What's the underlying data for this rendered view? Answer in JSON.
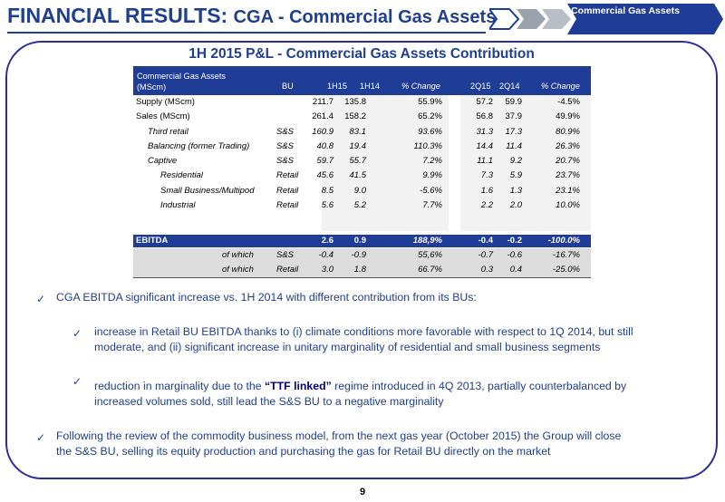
{
  "header": {
    "title_main": "FINANCIAL RESULTS:",
    "title_sub": "CGA - Commercial Gas Assets",
    "nav_chevron_label": "Commercial Gas Assets"
  },
  "section_title": "1H 2015 P&L - Commercial Gas Assets Contribution",
  "table": {
    "header_left_line1": "Commercial Gas Assets",
    "header_left_line2": "(MScm)",
    "columns": [
      "BU",
      "1H15",
      "1H14",
      "% Change",
      "2Q15",
      "2Q14",
      "% Change"
    ],
    "rows": [
      {
        "label": "Supply (MScm)",
        "bu": "",
        "c1": "211.7",
        "c2": "135.8",
        "c3": "55.9%",
        "c4": "57.2",
        "c5": "59.9",
        "c6": "-4.5%"
      },
      {
        "label": "Sales (MScm)",
        "bu": "",
        "c1": "261.4",
        "c2": "158.2",
        "c3": "65.2%",
        "c4": "56.8",
        "c5": "37.9",
        "c6": "49.9%"
      },
      {
        "label": "Third retail",
        "bu": "S&S",
        "c1": "160.9",
        "c2": "83.1",
        "c3": "93.6%",
        "c4": "31.3",
        "c5": "17.3",
        "c6": "80.9%"
      },
      {
        "label": "Balancing (former Trading)",
        "bu": "S&S",
        "c1": "40.8",
        "c2": "19.4",
        "c3": "110.3%",
        "c4": "14.4",
        "c5": "11.4",
        "c6": "26.3%"
      },
      {
        "label": "Captive",
        "bu": "S&S",
        "c1": "59.7",
        "c2": "55.7",
        "c3": "7.2%",
        "c4": "11.1",
        "c5": "9.2",
        "c6": "20.7%"
      },
      {
        "label": "Residential",
        "bu": "Retail",
        "c1": "45.6",
        "c2": "41.5",
        "c3": "9.9%",
        "c4": "7.3",
        "c5": "5.9",
        "c6": "23.7%"
      },
      {
        "label": "Small Business/Multipod",
        "bu": "Retail",
        "c1": "8.5",
        "c2": "9.0",
        "c3": "-5.6%",
        "c4": "1.6",
        "c5": "1.3",
        "c6": "23.1%"
      },
      {
        "label": "Industrial",
        "bu": "Retail",
        "c1": "5.6",
        "c2": "5.2",
        "c3": "7.7%",
        "c4": "2.2",
        "c5": "2.0",
        "c6": "10.0%"
      }
    ],
    "ebitda": {
      "label": "EBITDA",
      "c1": "2.6",
      "c2": "0.9",
      "c3": "188,9%",
      "c4": "-0.4",
      "c5": "-0.2",
      "c6": "-100.0%"
    },
    "of_which": [
      {
        "label": "of which",
        "bu": "S&S",
        "c1": "-0.4",
        "c2": "-0.9",
        "c3": "55,6%",
        "c4": "-0.7",
        "c5": "-0.6",
        "c6": "-16.7%"
      },
      {
        "label": "of which",
        "bu": "Retail",
        "c1": "3.0",
        "c2": "1.8",
        "c3": "66.7%",
        "c4": "0.3",
        "c5": "0.4",
        "c6": "-25.0%"
      }
    ]
  },
  "bullets": {
    "b1": "CGA EBITDA significant increase vs. 1H 2014 with different contribution from its BUs:",
    "b2_line1": "increase in Retail BU EBITDA thanks to (i) climate conditions more favorable with respect to 1Q 2014, but still",
    "b2_line2": "moderate, and (ii) significant increase in unitary marginality of residential and small business segments",
    "b3_pre": "reduction in marginality due to the",
    "b3_quote": "“TTF linked”",
    "b3_post": "regime introduced in 4Q 2013, partially counterbalanced by",
    "b3_line2": "increased volumes sold, still lead the S&S BU to a negative marginality",
    "b4_line1": "Following the review of the commodity business model, from the next gas year (October 2015) the Group will close",
    "b4_line2": "the S&S BU, selling its equity production and purchasing the gas for Retail BU directly on the market"
  },
  "page_number": "9",
  "colors": {
    "brand_blue": "#1f3f8f",
    "table_header": "#1f3c96",
    "shade": "#dcdcdc"
  }
}
